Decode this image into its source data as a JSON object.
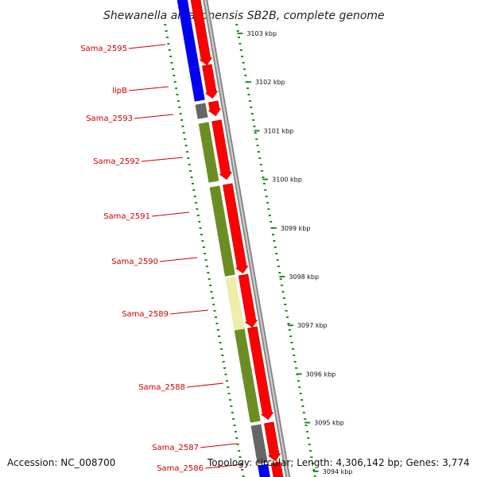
{
  "title": "Shewanella amazonensis SB2B, complete genome",
  "footer": {
    "accession": "Accession: NC_008700",
    "topology": "Topology: circular; Length: 4,306,142 bp; Genes: 3,774"
  },
  "colors": {
    "cds_forward": "#ff0000",
    "cog_blue": "#0000ee",
    "cog_olive": "#6b8e23",
    "cog_pale_yellow": "#eeeeaa",
    "cog_gray": "#666666",
    "backbone": "#888888",
    "gc_tick": "#228b22",
    "label": "#cc0000"
  },
  "scale_ticks": [
    {
      "label": "3103 kbp"
    },
    {
      "label": "3102 kbp"
    },
    {
      "label": "3101 kbp"
    },
    {
      "label": "3100 kbp"
    },
    {
      "label": "3099 kbp"
    },
    {
      "label": "3098 kbp"
    },
    {
      "label": "3097 kbp"
    },
    {
      "label": "3096 kbp"
    },
    {
      "label": "3095 kbp"
    },
    {
      "label": "3094 kbp"
    }
  ],
  "genes": [
    {
      "name": "Sama_2595",
      "cog_color": "blue"
    },
    {
      "name": "lipB",
      "cog_color": "blue"
    },
    {
      "name": "Sama_2593",
      "cog_color": "gray"
    },
    {
      "name": "Sama_2592",
      "cog_color": "olive"
    },
    {
      "name": "Sama_2591",
      "cog_color": "olive"
    },
    {
      "name": "Sama_2590",
      "cog_color": "olive"
    },
    {
      "name": "Sama_2589",
      "cog_color": "pale_yellow"
    },
    {
      "name": "Sama_2588",
      "cog_color": "olive"
    },
    {
      "name": "Sama_2587",
      "cog_color": "gray"
    },
    {
      "name": "Sama_2586",
      "cog_color": "blue"
    }
  ]
}
